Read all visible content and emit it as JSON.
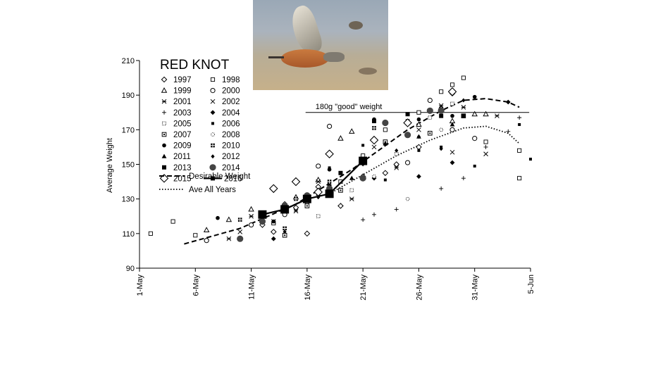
{
  "chart_data": {
    "type": "scatter",
    "title": "RED KNOT",
    "ylabel": "Average Weight",
    "xlabel": "",
    "ylim": [
      90,
      210
    ],
    "yticks": [
      90,
      110,
      130,
      150,
      170,
      190,
      210
    ],
    "xlim": [
      "2016-05-01",
      "2016-06-05"
    ],
    "xticks": [
      "1-May",
      "6-May",
      "11-May",
      "16-May",
      "21-May",
      "26-May",
      "31-May",
      "5-Jun"
    ],
    "reference_line": {
      "label": "180g \"good\" weight",
      "y": 180,
      "x_from": "2016-05-17",
      "x_to": "2016-06-04"
    },
    "photo": {
      "subject": "red-knot-bird-photo"
    },
    "series": [
      {
        "name": "1997",
        "marker": "diamond-open",
        "points": [
          [
            "2016-05-12",
            115
          ],
          [
            "2016-05-13",
            111
          ],
          [
            "2016-05-14",
            127
          ],
          [
            "2016-05-15",
            125
          ],
          [
            "2016-05-16",
            110
          ],
          [
            "2016-05-17",
            137
          ],
          [
            "2016-05-19",
            126
          ],
          [
            "2016-05-21",
            143
          ],
          [
            "2016-05-23",
            145
          ],
          [
            "2016-05-24",
            150
          ],
          [
            "2016-05-26",
            160
          ],
          [
            "2016-05-28",
            182
          ],
          [
            "2016-05-29",
            191
          ]
        ]
      },
      {
        "name": "1998",
        "marker": "square-open",
        "points": [
          [
            "2016-05-02",
            110
          ],
          [
            "2016-05-04",
            117
          ],
          [
            "2016-05-06",
            109
          ],
          [
            "2016-05-13",
            116
          ],
          [
            "2016-05-16",
            128
          ],
          [
            "2016-05-19",
            140
          ],
          [
            "2016-05-21",
            155
          ],
          [
            "2016-05-23",
            170
          ],
          [
            "2016-05-26",
            180
          ],
          [
            "2016-05-28",
            192
          ],
          [
            "2016-05-29",
            196
          ],
          [
            "2016-05-30",
            200
          ],
          [
            "2016-06-01",
            163
          ],
          [
            "2016-06-04",
            158
          ],
          [
            "2016-06-04",
            142
          ]
        ]
      },
      {
        "name": "1999",
        "marker": "triangle-open",
        "points": [
          [
            "2016-05-07",
            112
          ],
          [
            "2016-05-09",
            118
          ],
          [
            "2016-05-11",
            124
          ],
          [
            "2016-05-15",
            131
          ],
          [
            "2016-05-17",
            141
          ],
          [
            "2016-05-19",
            165
          ],
          [
            "2016-05-20",
            169
          ],
          [
            "2016-05-26",
            173
          ],
          [
            "2016-05-29",
            175
          ],
          [
            "2016-05-31",
            179
          ],
          [
            "2016-06-01",
            179
          ]
        ]
      },
      {
        "name": "2000",
        "marker": "circle-open",
        "points": [
          [
            "2016-05-07",
            106
          ],
          [
            "2016-05-11",
            115
          ],
          [
            "2016-05-14",
            121
          ],
          [
            "2016-05-17",
            149
          ],
          [
            "2016-05-18",
            172
          ],
          [
            "2016-05-21",
            153
          ],
          [
            "2016-05-25",
            151
          ],
          [
            "2016-05-27",
            187
          ],
          [
            "2016-05-29",
            170
          ],
          [
            "2016-05-31",
            165
          ]
        ]
      },
      {
        "name": "2001",
        "marker": "x",
        "points": [
          [
            "2016-05-09",
            107
          ],
          [
            "2016-05-11",
            120
          ],
          [
            "2016-05-15",
            123
          ],
          [
            "2016-05-20",
            130
          ],
          [
            "2016-05-24",
            148
          ],
          [
            "2016-05-28",
            184
          ],
          [
            "2016-05-30",
            183
          ],
          [
            "2016-06-02",
            178
          ]
        ]
      },
      {
        "name": "2002",
        "marker": "x-cross",
        "points": [
          [
            "2016-05-10",
            111
          ],
          [
            "2016-05-13",
            117
          ],
          [
            "2016-05-17",
            140
          ],
          [
            "2016-05-22",
            160
          ],
          [
            "2016-05-26",
            170
          ],
          [
            "2016-05-29",
            157
          ],
          [
            "2016-06-01",
            156
          ]
        ]
      },
      {
        "name": "2003",
        "marker": "plus",
        "points": [
          [
            "2016-05-21",
            118
          ],
          [
            "2016-05-22",
            121
          ],
          [
            "2016-05-24",
            124
          ],
          [
            "2016-05-28",
            136
          ],
          [
            "2016-05-30",
            142
          ],
          [
            "2016-06-01",
            160
          ],
          [
            "2016-06-03",
            169
          ],
          [
            "2016-06-04",
            177
          ]
        ]
      },
      {
        "name": "2004",
        "marker": "diamond-filled",
        "points": [
          [
            "2016-05-13",
            107
          ],
          [
            "2016-05-18",
            138
          ],
          [
            "2016-05-22",
            142
          ],
          [
            "2016-05-26",
            143
          ],
          [
            "2016-05-29",
            151
          ],
          [
            "2016-06-03",
            186
          ]
        ]
      },
      {
        "name": "2005",
        "marker": "square-dotted",
        "points": [
          [
            "2016-05-17",
            120
          ],
          [
            "2016-05-20",
            135
          ],
          [
            "2016-05-24",
            156
          ],
          [
            "2016-05-27",
            177
          ],
          [
            "2016-05-29",
            185
          ]
        ]
      },
      {
        "name": "2006",
        "marker": "square-small-filled",
        "points": [
          [
            "2016-05-18",
            148
          ],
          [
            "2016-05-21",
            161
          ],
          [
            "2016-05-23",
            141
          ],
          [
            "2016-05-26",
            158
          ],
          [
            "2016-05-28",
            160
          ],
          [
            "2016-05-31",
            149
          ],
          [
            "2016-06-04",
            173
          ],
          [
            "2016-06-05",
            153
          ]
        ]
      },
      {
        "name": "2007",
        "marker": "square-hatched",
        "points": [
          [
            "2016-05-14",
            109
          ],
          [
            "2016-05-16",
            126
          ],
          [
            "2016-05-19",
            135
          ],
          [
            "2016-05-23",
            163
          ],
          [
            "2016-05-27",
            168
          ],
          [
            "2016-05-30",
            178
          ]
        ]
      },
      {
        "name": "2008",
        "marker": "circle-dotted",
        "points": [
          [
            "2016-05-19",
            126
          ],
          [
            "2016-05-22",
            143
          ],
          [
            "2016-05-25",
            130
          ],
          [
            "2016-05-28",
            170
          ]
        ]
      },
      {
        "name": "2009",
        "marker": "circle-filled",
        "points": [
          [
            "2016-05-08",
            119
          ],
          [
            "2016-05-13",
            117
          ],
          [
            "2016-05-18",
            147
          ],
          [
            "2016-05-22",
            176
          ],
          [
            "2016-05-26",
            176
          ],
          [
            "2016-05-29",
            178
          ],
          [
            "2016-05-31",
            189
          ]
        ]
      },
      {
        "name": "2010",
        "marker": "square-cross",
        "points": [
          [
            "2016-05-10",
            118
          ],
          [
            "2016-05-14",
            113
          ],
          [
            "2016-05-15",
            130
          ],
          [
            "2016-05-18",
            140
          ],
          [
            "2016-05-22",
            171
          ],
          [
            "2016-05-25",
            175
          ]
        ]
      },
      {
        "name": "2011",
        "marker": "triangle-filled",
        "points": [
          [
            "2016-05-14",
            123
          ],
          [
            "2016-05-17",
            133
          ],
          [
            "2016-05-20",
            142
          ],
          [
            "2016-05-23",
            162
          ],
          [
            "2016-05-26",
            166
          ],
          [
            "2016-05-29",
            173
          ]
        ]
      },
      {
        "name": "2012",
        "marker": "diamond-small-filled",
        "points": [
          [
            "2016-05-14",
            111
          ],
          [
            "2016-05-17",
            131
          ],
          [
            "2016-05-21",
            150
          ],
          [
            "2016-05-24",
            158
          ],
          [
            "2016-05-26",
            166
          ],
          [
            "2016-05-28",
            159
          ],
          [
            "2016-05-30",
            187
          ]
        ]
      },
      {
        "name": "2013",
        "marker": "square-filled",
        "points": [
          [
            "2016-05-16",
            129
          ],
          [
            "2016-05-19",
            145
          ],
          [
            "2016-05-22",
            175
          ],
          [
            "2016-05-25",
            179
          ],
          [
            "2016-05-28",
            178
          ],
          [
            "2016-05-30",
            178
          ]
        ]
      },
      {
        "name": "2014",
        "marker": "circle-filled-large",
        "points": [
          [
            "2016-05-10",
            107
          ],
          [
            "2016-05-12",
            117
          ],
          [
            "2016-05-14",
            126
          ],
          [
            "2016-05-16",
            132
          ],
          [
            "2016-05-18",
            136
          ],
          [
            "2016-05-21",
            142
          ],
          [
            "2016-05-23",
            174
          ],
          [
            "2016-05-25",
            167
          ],
          [
            "2016-05-27",
            181
          ],
          [
            "2016-05-28",
            181
          ]
        ]
      },
      {
        "name": "2015",
        "marker": "diamond-open-large",
        "points": [
          [
            "2016-05-13",
            136
          ],
          [
            "2016-05-15",
            140
          ],
          [
            "2016-05-17",
            134
          ],
          [
            "2016-05-18",
            156
          ],
          [
            "2016-05-22",
            164
          ],
          [
            "2016-05-25",
            174
          ],
          [
            "2016-05-29",
            192
          ]
        ]
      },
      {
        "name": "2016",
        "marker": "square-filled-large-line",
        "points": [
          [
            "2016-05-12",
            121
          ],
          [
            "2016-05-14",
            124
          ],
          [
            "2016-05-16",
            130
          ],
          [
            "2016-05-18",
            133
          ],
          [
            "2016-05-21",
            152
          ]
        ]
      }
    ],
    "trend_lines": [
      {
        "name": "Desirable Weight",
        "style": "dashed",
        "points": [
          [
            "2016-05-05",
            104
          ],
          [
            "2016-05-10",
            113
          ],
          [
            "2016-05-15",
            127
          ],
          [
            "2016-05-20",
            147
          ],
          [
            "2016-05-25",
            170
          ],
          [
            "2016-05-28",
            181
          ],
          [
            "2016-05-30",
            187
          ],
          [
            "2016-06-01",
            188
          ],
          [
            "2016-06-03",
            186
          ],
          [
            "2016-06-04",
            183
          ]
        ]
      },
      {
        "name": "Ave All Years",
        "style": "dotted",
        "points": [
          [
            "2016-05-18",
            133
          ],
          [
            "2016-05-21",
            144
          ],
          [
            "2016-05-24",
            155
          ],
          [
            "2016-05-27",
            164
          ],
          [
            "2016-05-30",
            171
          ],
          [
            "2016-06-01",
            172
          ],
          [
            "2016-06-03",
            168
          ],
          [
            "2016-06-04",
            162
          ]
        ]
      }
    ]
  }
}
